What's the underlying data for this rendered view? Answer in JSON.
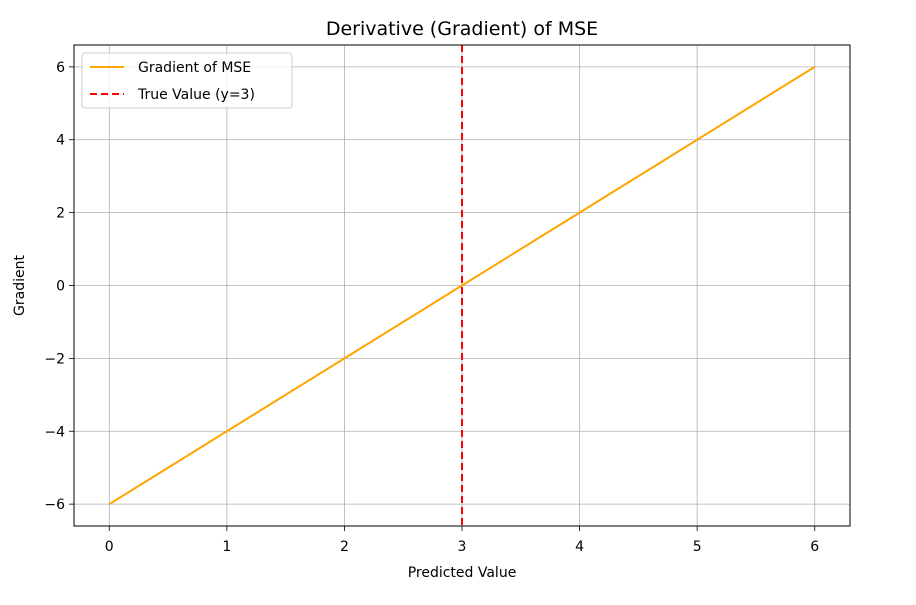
{
  "chart_data": {
    "type": "line",
    "title": "Derivative (Gradient) of MSE",
    "xlabel": "Predicted Value",
    "ylabel": "Gradient",
    "xlim": [
      -0.3,
      6.3
    ],
    "ylim": [
      -6.6,
      6.6
    ],
    "xticks": [
      0,
      1,
      2,
      3,
      4,
      5,
      6
    ],
    "yticks": [
      -6,
      -4,
      -2,
      0,
      2,
      4,
      6
    ],
    "xtick_labels": [
      "0",
      "1",
      "2",
      "3",
      "4",
      "5",
      "6"
    ],
    "ytick_labels": [
      "−6",
      "−4",
      "−2",
      "0",
      "2",
      "4",
      "6"
    ],
    "grid": true,
    "legend_position": "top-left",
    "series": [
      {
        "name": "Gradient of MSE",
        "color": "#ffa500",
        "style": "solid",
        "x": [
          0,
          1,
          2,
          3,
          4,
          5,
          6
        ],
        "y": [
          -6,
          -4,
          -2,
          0,
          2,
          4,
          6
        ]
      }
    ],
    "reference_lines": [
      {
        "name": "True Value (y=3)",
        "orientation": "vertical",
        "x": 3,
        "color": "#ff0000",
        "style": "dashed"
      }
    ]
  }
}
